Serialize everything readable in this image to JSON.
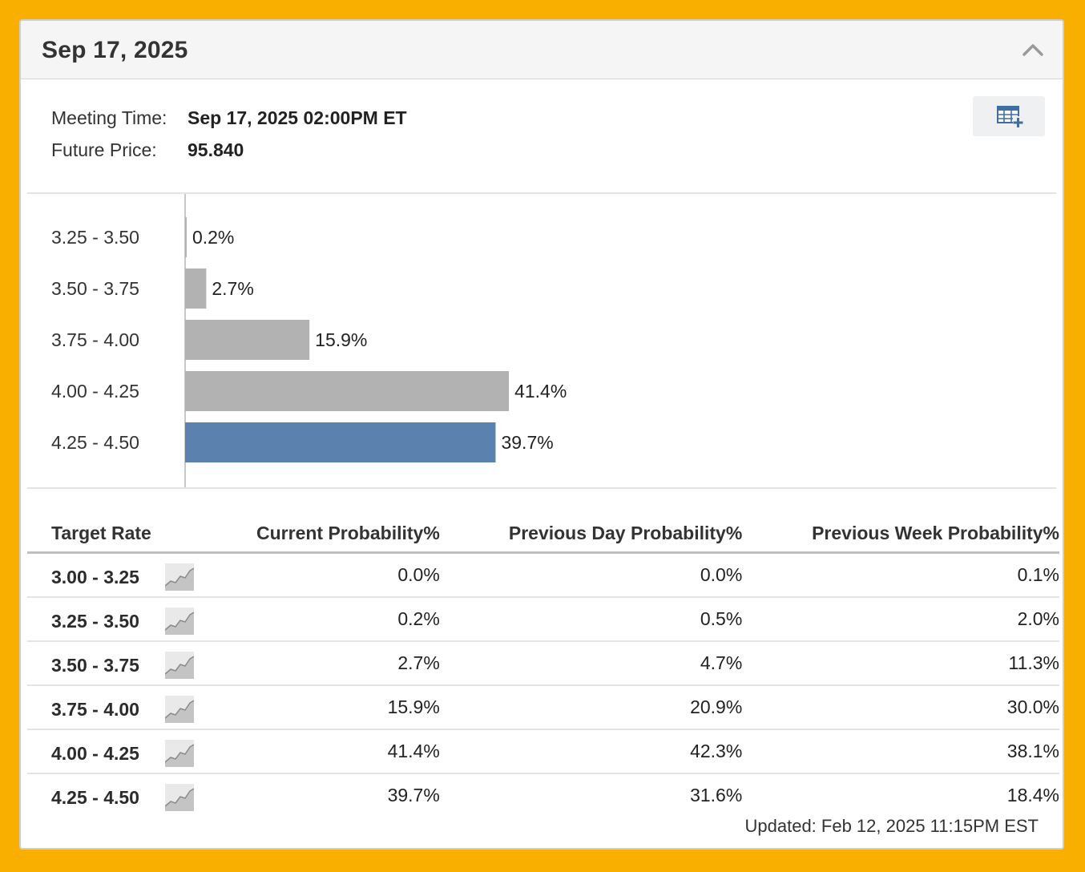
{
  "meeting": {
    "title": "Sep 17, 2025",
    "meeting_time_label": "Meeting Time:",
    "meeting_time_value": "Sep 17, 2025 02:00PM ET",
    "future_price_label": "Future Price:",
    "future_price_value": "95.840"
  },
  "chart_data": {
    "type": "bar",
    "orientation": "horizontal",
    "categories": [
      "3.25 - 3.50",
      "3.50 - 3.75",
      "3.75 - 4.00",
      "4.00 - 4.25",
      "4.25 - 4.50"
    ],
    "values": [
      0.2,
      2.7,
      15.9,
      41.4,
      39.7
    ],
    "value_labels": [
      "0.2%",
      "2.7%",
      "15.9%",
      "41.4%",
      "39.7%"
    ],
    "highlight_index": 4,
    "colors": {
      "default": "#b2b2b2",
      "highlight": "#5b82ae"
    }
  },
  "table": {
    "headers": [
      "Target Rate",
      "Current Probability%",
      "Previous Day Probability%",
      "Previous Week Probability%"
    ],
    "rows": [
      {
        "rate": "3.00 - 3.25",
        "current": "0.0%",
        "prev_day": "0.0%",
        "prev_week": "0.1%"
      },
      {
        "rate": "3.25 - 3.50",
        "current": "0.2%",
        "prev_day": "0.5%",
        "prev_week": "2.0%"
      },
      {
        "rate": "3.50 - 3.75",
        "current": "2.7%",
        "prev_day": "4.7%",
        "prev_week": "11.3%"
      },
      {
        "rate": "3.75 - 4.00",
        "current": "15.9%",
        "prev_day": "20.9%",
        "prev_week": "30.0%"
      },
      {
        "rate": "4.00 - 4.25",
        "current": "41.4%",
        "prev_day": "42.3%",
        "prev_week": "38.1%"
      },
      {
        "rate": "4.25 - 4.50",
        "current": "39.7%",
        "prev_day": "31.6%",
        "prev_week": "18.4%"
      }
    ]
  },
  "footer": {
    "updated": "Updated: Feb 12, 2025 11:15PM EST"
  },
  "icons": {
    "collapse": "chevron-up-icon",
    "export": "table-add-icon",
    "row_chart": "sparkline-icon"
  },
  "colors": {
    "page_background": "#F8AF00",
    "bar_default": "#b2b2b2",
    "bar_highlight": "#5b82ae"
  }
}
